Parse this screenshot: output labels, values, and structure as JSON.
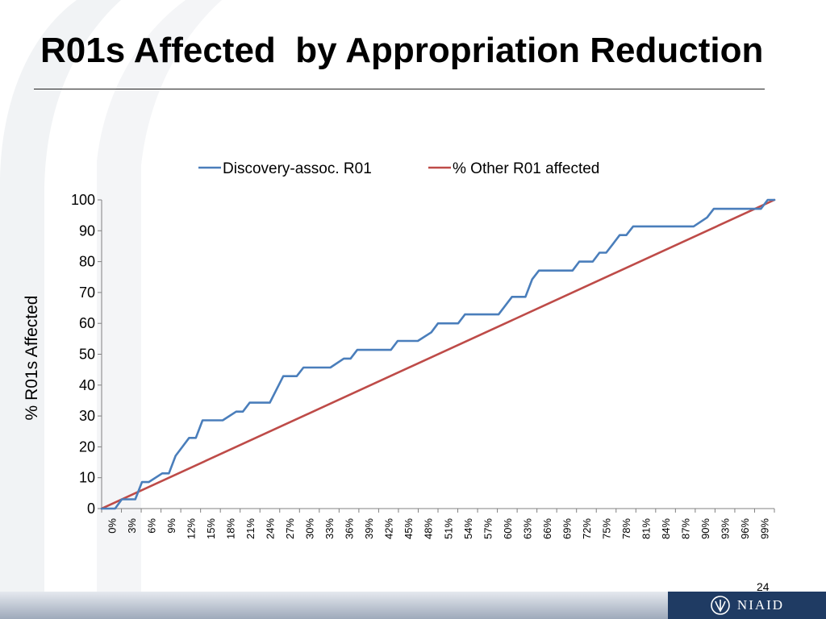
{
  "slide": {
    "title": "R01s Affected  by Appropriation Reduction",
    "page_number": "24",
    "logo_text": "NIAID"
  },
  "colors": {
    "series_blue": "#4a7ebb",
    "series_red": "#be4b48",
    "footer_band": "#b5bfcc",
    "logo_bg": "#1f3b63"
  },
  "chart_data": {
    "type": "line",
    "title": "",
    "xlabel": "",
    "ylabel": "% R01s Affected",
    "ylim": [
      0,
      100
    ],
    "yticks": [
      0,
      10,
      20,
      30,
      40,
      50,
      60,
      70,
      80,
      90,
      100
    ],
    "x_tick_labels": [
      "0%",
      "3%",
      "6%",
      "9%",
      "12%",
      "15%",
      "18%",
      "21%",
      "24%",
      "27%",
      "30%",
      "33%",
      "36%",
      "39%",
      "42%",
      "45%",
      "48%",
      "51%",
      "54%",
      "57%",
      "60%",
      "63%",
      "66%",
      "69%",
      "72%",
      "75%",
      "78%",
      "81%",
      "84%",
      "87%",
      "90%",
      "93%",
      "96%",
      "99%"
    ],
    "legend_position": "top",
    "grid": false,
    "series": [
      {
        "name": "Discovery-assoc. R01",
        "color": "#4a7ebb",
        "x": [
          0,
          2,
          3,
          5,
          6,
          7,
          9,
          10,
          11,
          12,
          13,
          14,
          15,
          16,
          17,
          18,
          20,
          21,
          22,
          23,
          24,
          25,
          27,
          28,
          29,
          30,
          31,
          32,
          33,
          34,
          36,
          37,
          38,
          39,
          40,
          41,
          43,
          44,
          45,
          46,
          47,
          49,
          50,
          51,
          53,
          54,
          55,
          57,
          58,
          59,
          61,
          62,
          63,
          64,
          65,
          66,
          67,
          69,
          70,
          71,
          72,
          73,
          74,
          75,
          76,
          77,
          78,
          79,
          80,
          81,
          82,
          83,
          84,
          85,
          86,
          87,
          88,
          90,
          91,
          92,
          93,
          94,
          95,
          96,
          97,
          98,
          99,
          100
        ],
        "y": [
          0,
          0,
          3,
          3,
          8.6,
          8.6,
          11.4,
          11.4,
          17.1,
          20,
          22.9,
          22.9,
          28.6,
          28.6,
          28.6,
          28.6,
          31.4,
          31.4,
          34.3,
          34.3,
          34.3,
          34.3,
          42.9,
          42.9,
          42.9,
          45.7,
          45.7,
          45.7,
          45.7,
          45.7,
          48.6,
          48.6,
          51.4,
          51.4,
          51.4,
          51.4,
          51.4,
          54.3,
          54.3,
          54.3,
          54.3,
          57.1,
          60,
          60,
          60,
          62.9,
          62.9,
          62.9,
          62.9,
          62.9,
          68.6,
          68.6,
          68.6,
          74.3,
          77.1,
          77.1,
          77.1,
          77.1,
          77.1,
          80,
          80,
          80,
          82.9,
          82.9,
          85.7,
          88.6,
          88.6,
          91.4,
          91.4,
          91.4,
          91.4,
          91.4,
          91.4,
          91.4,
          91.4,
          91.4,
          91.4,
          94.3,
          97.1,
          97.1,
          97.1,
          97.1,
          97.1,
          97.1,
          97.1,
          97.1,
          100,
          100
        ]
      },
      {
        "name": "% Other R01 affected",
        "color": "#be4b48",
        "x": [
          0,
          100
        ],
        "y": [
          0,
          100
        ]
      }
    ]
  }
}
